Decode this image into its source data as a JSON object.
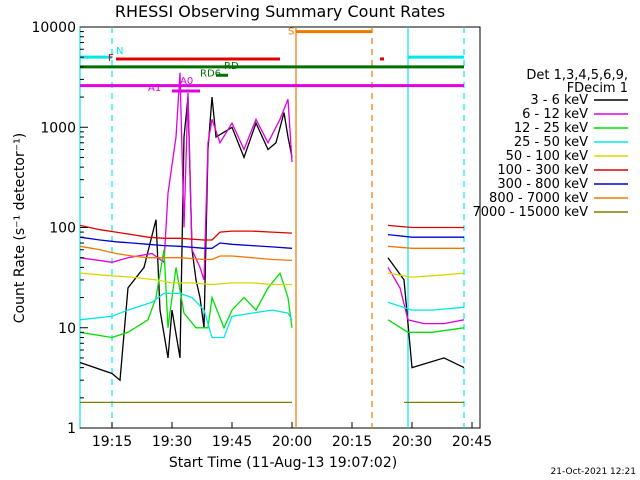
{
  "chart_data": {
    "type": "line",
    "title": "RHESSI Observing Summary Count Rates",
    "xlabel": "Start Time (11-Aug-13 19:07:02)",
    "ylabel": "Count Rate (s⁻¹ detector⁻¹)",
    "y_scale": "log",
    "ylim": [
      1,
      10000
    ],
    "xlim": [
      "19:07",
      "20:47"
    ],
    "x_ticks": [
      "19:15",
      "19:30",
      "19:45",
      "20:00",
      "20:15",
      "20:30",
      "20:45"
    ],
    "y_ticks": [
      "1",
      "10",
      "100",
      "1000",
      "10000"
    ],
    "footer": "21-Oct-2021 12:21",
    "legend": {
      "placement": "right",
      "header1": "Det 1,3,4,5,6,9,",
      "header2": "FDecim 1",
      "entries": [
        {
          "label": "3 - 6 keV",
          "color": "#000000"
        },
        {
          "label": "6 - 12 keV",
          "color": "#e000e0"
        },
        {
          "label": "12 - 25 keV",
          "color": "#00e000"
        },
        {
          "label": "25 - 50 keV",
          "color": "#00e8e8"
        },
        {
          "label": "50 - 100 keV",
          "color": "#d8d800"
        },
        {
          "label": "100 - 300 keV",
          "color": "#e00000"
        },
        {
          "label": "300 - 800 keV",
          "color": "#0000d0"
        },
        {
          "label": "800 - 7000 keV",
          "color": "#f07800"
        },
        {
          "label": "7000 - 15000 keV",
          "color": "#808000"
        }
      ]
    },
    "flag_labels": {
      "N": "N",
      "F": "F",
      "S": "S",
      "RD": "RD",
      "RD6": "RD6",
      "A1": "A1",
      "A0": "A0"
    },
    "series": [
      {
        "name": "3 - 6 keV",
        "color": "#000000",
        "points": [
          [
            "19:07",
            4.5
          ],
          [
            "19:15",
            3.5
          ],
          [
            "19:17",
            3
          ],
          [
            "19:19",
            25
          ],
          [
            "19:23",
            40
          ],
          [
            "19:26",
            120
          ],
          [
            "19:27",
            15
          ],
          [
            "19:29",
            5
          ],
          [
            "19:30",
            15
          ],
          [
            "19:32",
            5
          ],
          [
            "19:33",
            800
          ],
          [
            "19:34",
            2000
          ],
          [
            "19:35",
            60
          ],
          [
            "19:36",
            30
          ],
          [
            "19:37",
            20
          ],
          [
            "19:38",
            10
          ],
          [
            "19:39",
            600
          ],
          [
            "19:40",
            2000
          ],
          [
            "19:41",
            800
          ],
          [
            "19:45",
            1000
          ],
          [
            "19:48",
            500
          ],
          [
            "19:51",
            1100
          ],
          [
            "19:54",
            600
          ],
          [
            "19:56",
            700
          ],
          [
            "19:58",
            1400
          ],
          [
            "19:59",
            800
          ],
          [
            "20:00",
            500
          ],
          [
            "20:24",
            50
          ],
          [
            "20:28",
            30
          ],
          [
            "20:30",
            4
          ],
          [
            "20:38",
            5
          ],
          [
            "20:43",
            4
          ]
        ]
      },
      {
        "name": "6 - 12 keV",
        "color": "#e000e0",
        "points": [
          [
            "19:07",
            50
          ],
          [
            "19:15",
            45
          ],
          [
            "19:19",
            50
          ],
          [
            "19:25",
            55
          ],
          [
            "19:28",
            45
          ],
          [
            "19:29",
            220
          ],
          [
            "19:31",
            800
          ],
          [
            "19:32",
            3500
          ],
          [
            "19:33",
            100
          ],
          [
            "19:34",
            2200
          ],
          [
            "19:35",
            60
          ],
          [
            "19:37",
            40
          ],
          [
            "19:38",
            30
          ],
          [
            "19:39",
            700
          ],
          [
            "19:40",
            1200
          ],
          [
            "19:42",
            700
          ],
          [
            "19:45",
            1100
          ],
          [
            "19:48",
            600
          ],
          [
            "19:51",
            1200
          ],
          [
            "19:54",
            700
          ],
          [
            "19:57",
            1200
          ],
          [
            "19:59",
            1900
          ],
          [
            "20:00",
            450
          ],
          [
            "20:24",
            40
          ],
          [
            "20:27",
            25
          ],
          [
            "20:29",
            12
          ],
          [
            "20:33",
            11
          ],
          [
            "20:38",
            11
          ],
          [
            "20:43",
            12
          ]
        ]
      },
      {
        "name": "12 - 25 keV",
        "color": "#00e000",
        "points": [
          [
            "19:07",
            9
          ],
          [
            "19:15",
            8
          ],
          [
            "19:19",
            9
          ],
          [
            "19:24",
            12
          ],
          [
            "19:26",
            20
          ],
          [
            "19:28",
            60
          ],
          [
            "19:29",
            10
          ],
          [
            "19:31",
            40
          ],
          [
            "19:33",
            14
          ],
          [
            "19:36",
            10
          ],
          [
            "19:39",
            10
          ],
          [
            "19:40",
            20
          ],
          [
            "19:43",
            10
          ],
          [
            "19:45",
            15
          ],
          [
            "19:48",
            20
          ],
          [
            "19:51",
            15
          ],
          [
            "19:54",
            25
          ],
          [
            "19:57",
            35
          ],
          [
            "19:59",
            20
          ],
          [
            "20:00",
            10
          ],
          [
            "20:24",
            12
          ],
          [
            "20:29",
            9
          ],
          [
            "20:35",
            9
          ],
          [
            "20:43",
            10
          ]
        ]
      },
      {
        "name": "25 - 50 keV",
        "color": "#00e8e8",
        "points": [
          [
            "19:07",
            12
          ],
          [
            "19:15",
            13
          ],
          [
            "19:19",
            15
          ],
          [
            "19:25",
            18
          ],
          [
            "19:28",
            22
          ],
          [
            "19:32",
            22
          ],
          [
            "19:35",
            20
          ],
          [
            "19:38",
            15
          ],
          [
            "19:40",
            8
          ],
          [
            "19:43",
            8
          ],
          [
            "19:45",
            13
          ],
          [
            "19:50",
            14
          ],
          [
            "19:55",
            15
          ],
          [
            "19:59",
            14
          ],
          [
            "20:00",
            12
          ],
          [
            "20:24",
            18
          ],
          [
            "20:30",
            15
          ],
          [
            "20:35",
            15
          ],
          [
            "20:43",
            16
          ]
        ]
      },
      {
        "name": "50 - 100 keV",
        "color": "#d8d800",
        "points": [
          [
            "19:07",
            35
          ],
          [
            "19:15",
            33
          ],
          [
            "19:20",
            32
          ],
          [
            "19:26",
            30
          ],
          [
            "19:30",
            28
          ],
          [
            "19:35",
            28
          ],
          [
            "19:40",
            27
          ],
          [
            "19:45",
            28
          ],
          [
            "19:50",
            28
          ],
          [
            "19:55",
            27
          ],
          [
            "20:00",
            27
          ],
          [
            "20:24",
            35
          ],
          [
            "20:30",
            32
          ],
          [
            "20:35",
            33
          ],
          [
            "20:43",
            35
          ]
        ]
      },
      {
        "name": "100 - 300 keV",
        "color": "#e00000",
        "points": [
          [
            "19:07",
            105
          ],
          [
            "19:12",
            95
          ],
          [
            "19:16",
            90
          ],
          [
            "19:20",
            85
          ],
          [
            "19:24",
            80
          ],
          [
            "19:28",
            78
          ],
          [
            "19:32",
            78
          ],
          [
            "19:38",
            75
          ],
          [
            "19:40",
            75
          ],
          [
            "19:42",
            90
          ],
          [
            "19:45",
            92
          ],
          [
            "19:50",
            92
          ],
          [
            "19:55",
            90
          ],
          [
            "20:00",
            88
          ],
          [
            "20:24",
            105
          ],
          [
            "20:30",
            100
          ],
          [
            "20:35",
            100
          ],
          [
            "20:43",
            100
          ]
        ]
      },
      {
        "name": "300 - 800 keV",
        "color": "#0000d0",
        "points": [
          [
            "19:07",
            80
          ],
          [
            "19:12",
            75
          ],
          [
            "19:16",
            72
          ],
          [
            "19:20",
            70
          ],
          [
            "19:24",
            68
          ],
          [
            "19:28",
            66
          ],
          [
            "19:32",
            65
          ],
          [
            "19:38",
            62
          ],
          [
            "19:40",
            62
          ],
          [
            "19:42",
            70
          ],
          [
            "19:45",
            68
          ],
          [
            "19:50",
            66
          ],
          [
            "19:55",
            64
          ],
          [
            "20:00",
            62
          ],
          [
            "20:24",
            85
          ],
          [
            "20:30",
            80
          ],
          [
            "20:35",
            80
          ],
          [
            "20:43",
            80
          ]
        ]
      },
      {
        "name": "800 - 7000 keV",
        "color": "#f07800",
        "points": [
          [
            "19:07",
            65
          ],
          [
            "19:12",
            60
          ],
          [
            "19:16",
            55
          ],
          [
            "19:20",
            52
          ],
          [
            "19:24",
            50
          ],
          [
            "19:28",
            50
          ],
          [
            "19:32",
            50
          ],
          [
            "19:38",
            48
          ],
          [
            "19:40",
            48
          ],
          [
            "19:42",
            52
          ],
          [
            "19:45",
            52
          ],
          [
            "19:50",
            50
          ],
          [
            "19:55",
            48
          ],
          [
            "20:00",
            47
          ],
          [
            "20:24",
            65
          ],
          [
            "20:30",
            62
          ],
          [
            "20:35",
            62
          ],
          [
            "20:43",
            62
          ]
        ]
      },
      {
        "name": "7000 - 15000 keV",
        "color": "#808000",
        "points": [
          [
            "19:07",
            1.8
          ],
          [
            "19:15",
            1.8
          ],
          [
            "19:25",
            1.8
          ],
          [
            "19:30",
            1.8
          ],
          [
            "19:40",
            1.8
          ],
          [
            "19:50",
            1.8
          ],
          [
            "20:00",
            1.8
          ],
          [
            "20:28",
            1.8
          ],
          [
            "20:35",
            1.8
          ],
          [
            "20:43",
            1.8
          ]
        ]
      }
    ],
    "vertical_lines": [
      {
        "time": "19:07",
        "color": "#00e8e8",
        "style": "solid"
      },
      {
        "time": "19:15",
        "color": "#00e8e8",
        "style": "dashed"
      },
      {
        "time": "20:01",
        "color": "#f07800",
        "style": "solid"
      },
      {
        "time": "20:20",
        "color": "#f07800",
        "style": "dashed"
      },
      {
        "time": "20:29",
        "color": "#00e8e8",
        "style": "solid"
      },
      {
        "time": "20:43",
        "color": "#00e8e8",
        "style": "dashed"
      }
    ],
    "flag_bars": [
      {
        "label": "N",
        "color": "#00e8e8",
        "segments": [
          [
            "19:07",
            "19:15"
          ],
          [
            "20:29",
            "20:43"
          ]
        ],
        "level": 5000
      },
      {
        "label": "F",
        "color": "#e00000",
        "segments": [
          [
            "19:16",
            "19:57"
          ],
          [
            "20:22",
            "20:23"
          ]
        ],
        "level": 4800
      },
      {
        "label": "S",
        "color": "#f07800",
        "segments": [
          [
            "20:01",
            "20:20"
          ]
        ],
        "level": 9000
      },
      {
        "label": "RD",
        "color": "#007000",
        "segments": [
          [
            "19:07",
            "20:43"
          ]
        ],
        "level": 4000
      },
      {
        "label": "RD6",
        "color": "#007000",
        "segments": [
          [
            "19:41",
            "19:44"
          ]
        ],
        "level": 3300
      },
      {
        "label": "A1",
        "color": "#e000e0",
        "segments": [
          [
            "19:07",
            "20:43"
          ]
        ],
        "level": 2600
      },
      {
        "label": "A0",
        "color": "#e000e0",
        "segments": [
          [
            "19:30",
            "19:37"
          ]
        ],
        "level": 2300
      }
    ]
  }
}
